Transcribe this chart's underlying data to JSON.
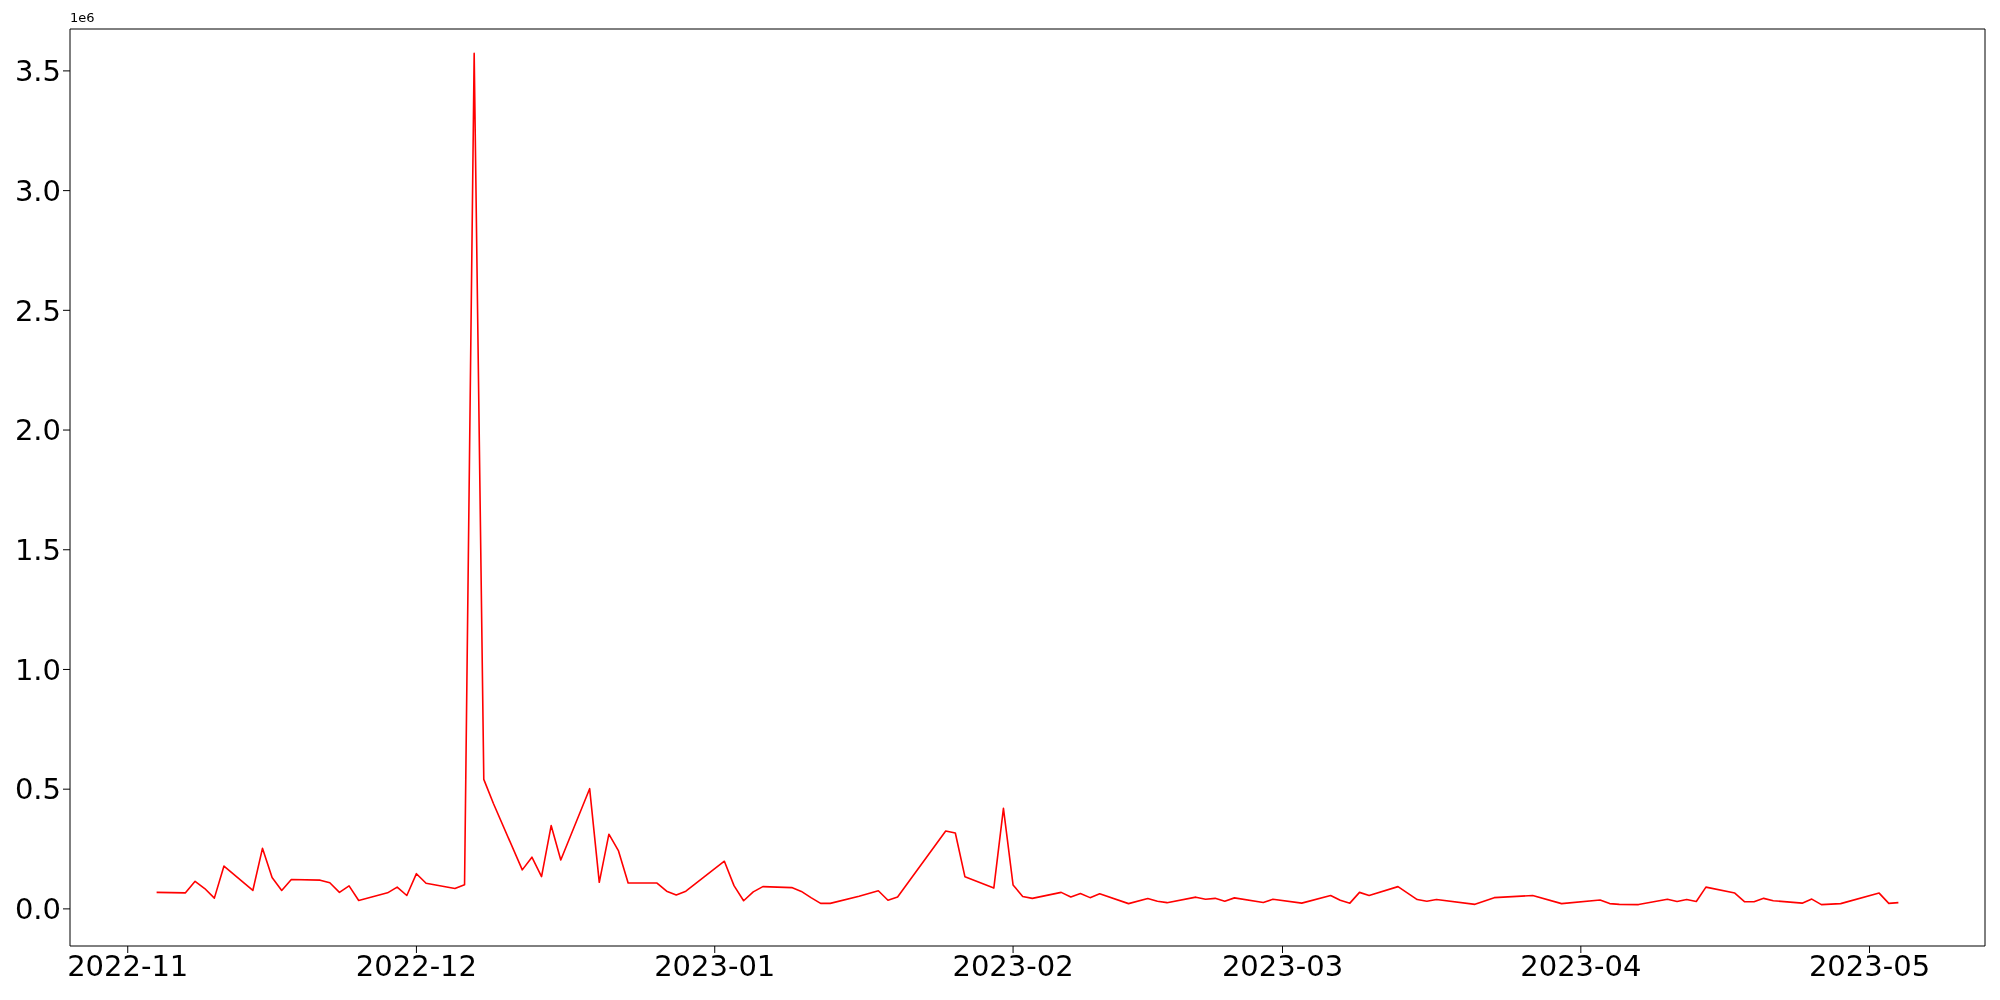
{
  "chart_data": {
    "type": "line",
    "x": [
      "2022-11-04",
      "2022-11-07",
      "2022-11-08",
      "2022-11-09",
      "2022-11-10",
      "2022-11-11",
      "2022-11-14",
      "2022-11-15",
      "2022-11-16",
      "2022-11-17",
      "2022-11-18",
      "2022-11-21",
      "2022-11-22",
      "2022-11-23",
      "2022-11-24",
      "2022-11-25",
      "2022-11-28",
      "2022-11-29",
      "2022-11-30",
      "2022-12-01",
      "2022-12-02",
      "2022-12-05",
      "2022-12-06",
      "2022-12-07",
      "2022-12-08",
      "2022-12-09",
      "2022-12-12",
      "2022-12-13",
      "2022-12-14",
      "2022-12-15",
      "2022-12-16",
      "2022-12-19",
      "2022-12-20",
      "2022-12-21",
      "2022-12-22",
      "2022-12-23",
      "2022-12-26",
      "2022-12-27",
      "2022-12-28",
      "2022-12-29",
      "2023-01-02",
      "2023-01-03",
      "2023-01-04",
      "2023-01-05",
      "2023-01-06",
      "2023-01-09",
      "2023-01-10",
      "2023-01-11",
      "2023-01-12",
      "2023-01-13",
      "2023-01-16",
      "2023-01-18",
      "2023-01-19",
      "2023-01-20",
      "2023-01-25",
      "2023-01-26",
      "2023-01-27",
      "2023-01-30",
      "2023-01-31",
      "2023-02-01",
      "2023-02-02",
      "2023-02-03",
      "2023-02-06",
      "2023-02-07",
      "2023-02-08",
      "2023-02-09",
      "2023-02-10",
      "2023-02-13",
      "2023-02-15",
      "2023-02-16",
      "2023-02-17",
      "2023-02-20",
      "2023-02-21",
      "2023-02-22",
      "2023-02-23",
      "2023-02-24",
      "2023-02-27",
      "2023-02-28",
      "2023-03-03",
      "2023-03-06",
      "2023-03-07",
      "2023-03-08",
      "2023-03-09",
      "2023-03-10",
      "2023-03-13",
      "2023-03-15",
      "2023-03-16",
      "2023-03-17",
      "2023-03-21",
      "2023-03-23",
      "2023-03-27",
      "2023-03-30",
      "2023-04-03",
      "2023-04-04",
      "2023-04-05",
      "2023-04-07",
      "2023-04-10",
      "2023-04-11",
      "2023-04-12",
      "2023-04-13",
      "2023-04-14",
      "2023-04-17",
      "2023-04-18",
      "2023-04-19",
      "2023-04-20",
      "2023-04-21",
      "2023-04-24",
      "2023-04-25",
      "2023-04-26",
      "2023-04-28",
      "2023-05-02",
      "2023-05-03",
      "2023-05-04"
    ],
    "series": [
      {
        "color": "#ff0000",
        "values": [
          0.069,
          0.067,
          0.115,
          0.085,
          0.045,
          0.179,
          0.077,
          0.253,
          0.131,
          0.077,
          0.123,
          0.12,
          0.109,
          0.069,
          0.096,
          0.035,
          0.067,
          0.091,
          0.056,
          0.147,
          0.107,
          0.085,
          0.101,
          3.573,
          0.541,
          0.44,
          0.163,
          0.216,
          0.135,
          0.348,
          0.204,
          0.502,
          0.111,
          0.312,
          0.242,
          0.108,
          0.108,
          0.074,
          0.058,
          0.074,
          0.199,
          0.097,
          0.034,
          0.071,
          0.093,
          0.089,
          0.073,
          0.047,
          0.023,
          0.023,
          0.053,
          0.076,
          0.036,
          0.05,
          0.325,
          0.317,
          0.134,
          0.087,
          0.42,
          0.1,
          0.052,
          0.044,
          0.069,
          0.05,
          0.064,
          0.047,
          0.063,
          0.022,
          0.043,
          0.032,
          0.026,
          0.049,
          0.04,
          0.044,
          0.032,
          0.046,
          0.027,
          0.04,
          0.024,
          0.056,
          0.036,
          0.024,
          0.069,
          0.056,
          0.093,
          0.039,
          0.032,
          0.039,
          0.019,
          0.047,
          0.056,
          0.022,
          0.037,
          0.022,
          0.019,
          0.018,
          0.04,
          0.031,
          0.039,
          0.031,
          0.091,
          0.066,
          0.03,
          0.03,
          0.044,
          0.034,
          0.024,
          0.041,
          0.018,
          0.022,
          0.066,
          0.023,
          0.026
        ]
      }
    ],
    "xlim": [
      "2022-10-26",
      "2023-05-13"
    ],
    "xticks": [
      "2022-11",
      "2022-12",
      "2023-01",
      "2023-02",
      "2023-03",
      "2023-04",
      "2023-05"
    ],
    "ylim": [
      -0.155,
      3.675
    ],
    "yticks": [
      {
        "value": 0,
        "label": "0.0"
      },
      {
        "value": 0.5,
        "label": "0.5"
      },
      {
        "value": 1,
        "label": "1.0"
      },
      {
        "value": 1.5,
        "label": "1.5"
      },
      {
        "value": 2,
        "label": "2.0"
      },
      {
        "value": 2.5,
        "label": "2.5"
      },
      {
        "value": 3,
        "label": "3.0"
      },
      {
        "value": 3.5,
        "label": "3.5"
      }
    ],
    "annotations": [
      "1e6"
    ]
  }
}
